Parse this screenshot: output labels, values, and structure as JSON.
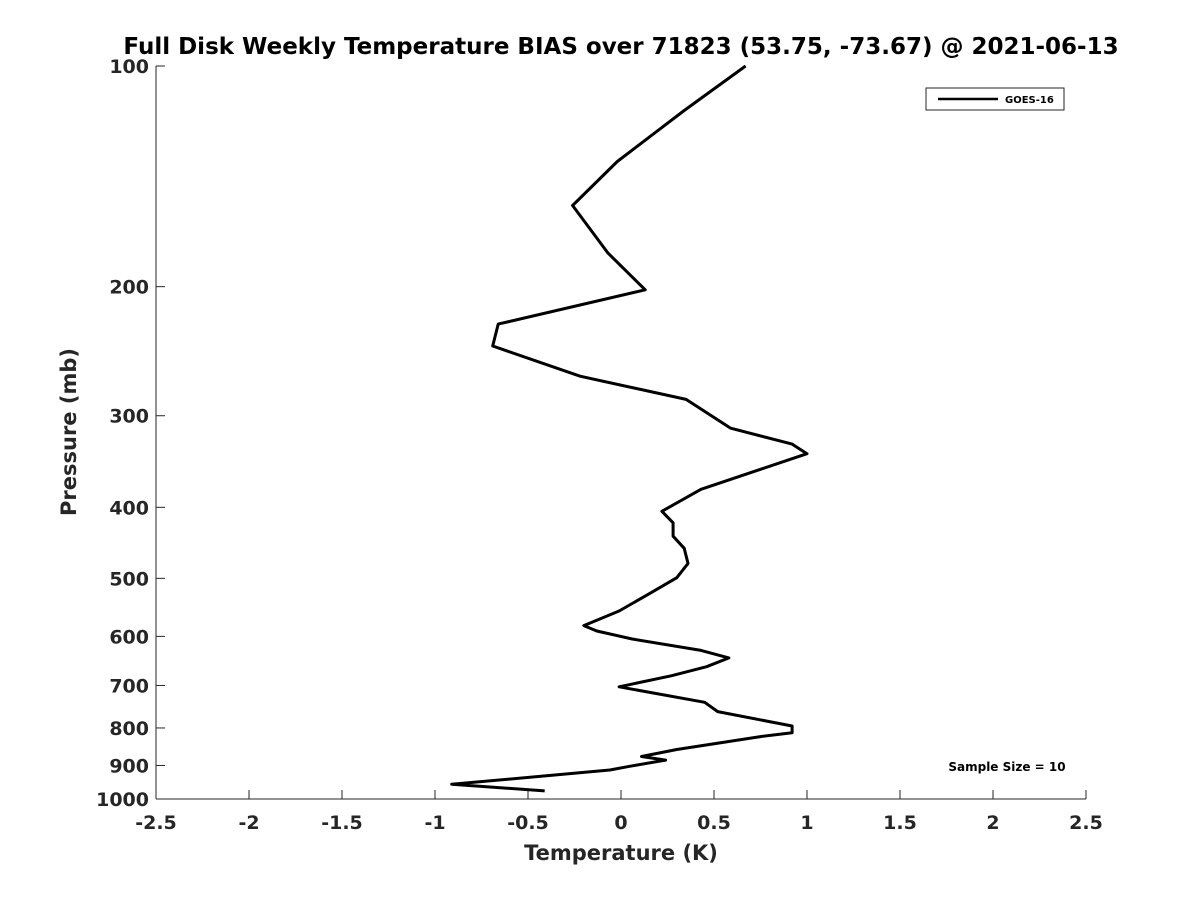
{
  "chart_data": {
    "type": "line",
    "title": "Full Disk Weekly Temperature BIAS over 71823 (53.75, -73.67) @ 2021-06-13",
    "xlabel": "Temperature (K)",
    "ylabel": "Pressure (mb)",
    "xlim": [
      -2.5,
      2.5
    ],
    "ylim": [
      100,
      1000
    ],
    "y_scale": "log",
    "y_reversed": true,
    "x_ticks": [
      "-2.5",
      "-2",
      "-1.5",
      "-1",
      "-0.5",
      "0",
      "0.5",
      "1",
      "1.5",
      "2",
      "2.5"
    ],
    "y_ticks": [
      "100",
      "200",
      "300",
      "400",
      "500",
      "600",
      "700",
      "800",
      "900",
      "1000"
    ],
    "grid": false,
    "legend_position": "top-right",
    "annotation": "Sample Size = 10",
    "series": [
      {
        "name": "GOES-16",
        "color": "#000000",
        "x": [
          0.67,
          0.34,
          -0.02,
          -0.26,
          -0.07,
          0.13,
          -0.66,
          -0.69,
          -0.22,
          0.35,
          0.59,
          0.92,
          1.0,
          0.75,
          0.43,
          0.22,
          0.28,
          0.28,
          0.34,
          0.36,
          0.3,
          0.15,
          -0.01,
          -0.2,
          -0.13,
          0.06,
          0.43,
          0.58,
          0.46,
          0.27,
          -0.01,
          0.45,
          0.52,
          0.92,
          0.92,
          0.75,
          0.3,
          0.11,
          0.24,
          0.05,
          -0.06,
          -0.91,
          -0.41
        ],
        "y": [
          100,
          115,
          135,
          155,
          180,
          202,
          225,
          241,
          265,
          285,
          312,
          328,
          338,
          355,
          378,
          405,
          420,
          438,
          455,
          477,
          499,
          525,
          554,
          580,
          590,
          605,
          627,
          642,
          660,
          679,
          703,
          738,
          760,
          795,
          812,
          822,
          856,
          875,
          885,
          902,
          913,
          955,
          975
        ]
      }
    ]
  }
}
